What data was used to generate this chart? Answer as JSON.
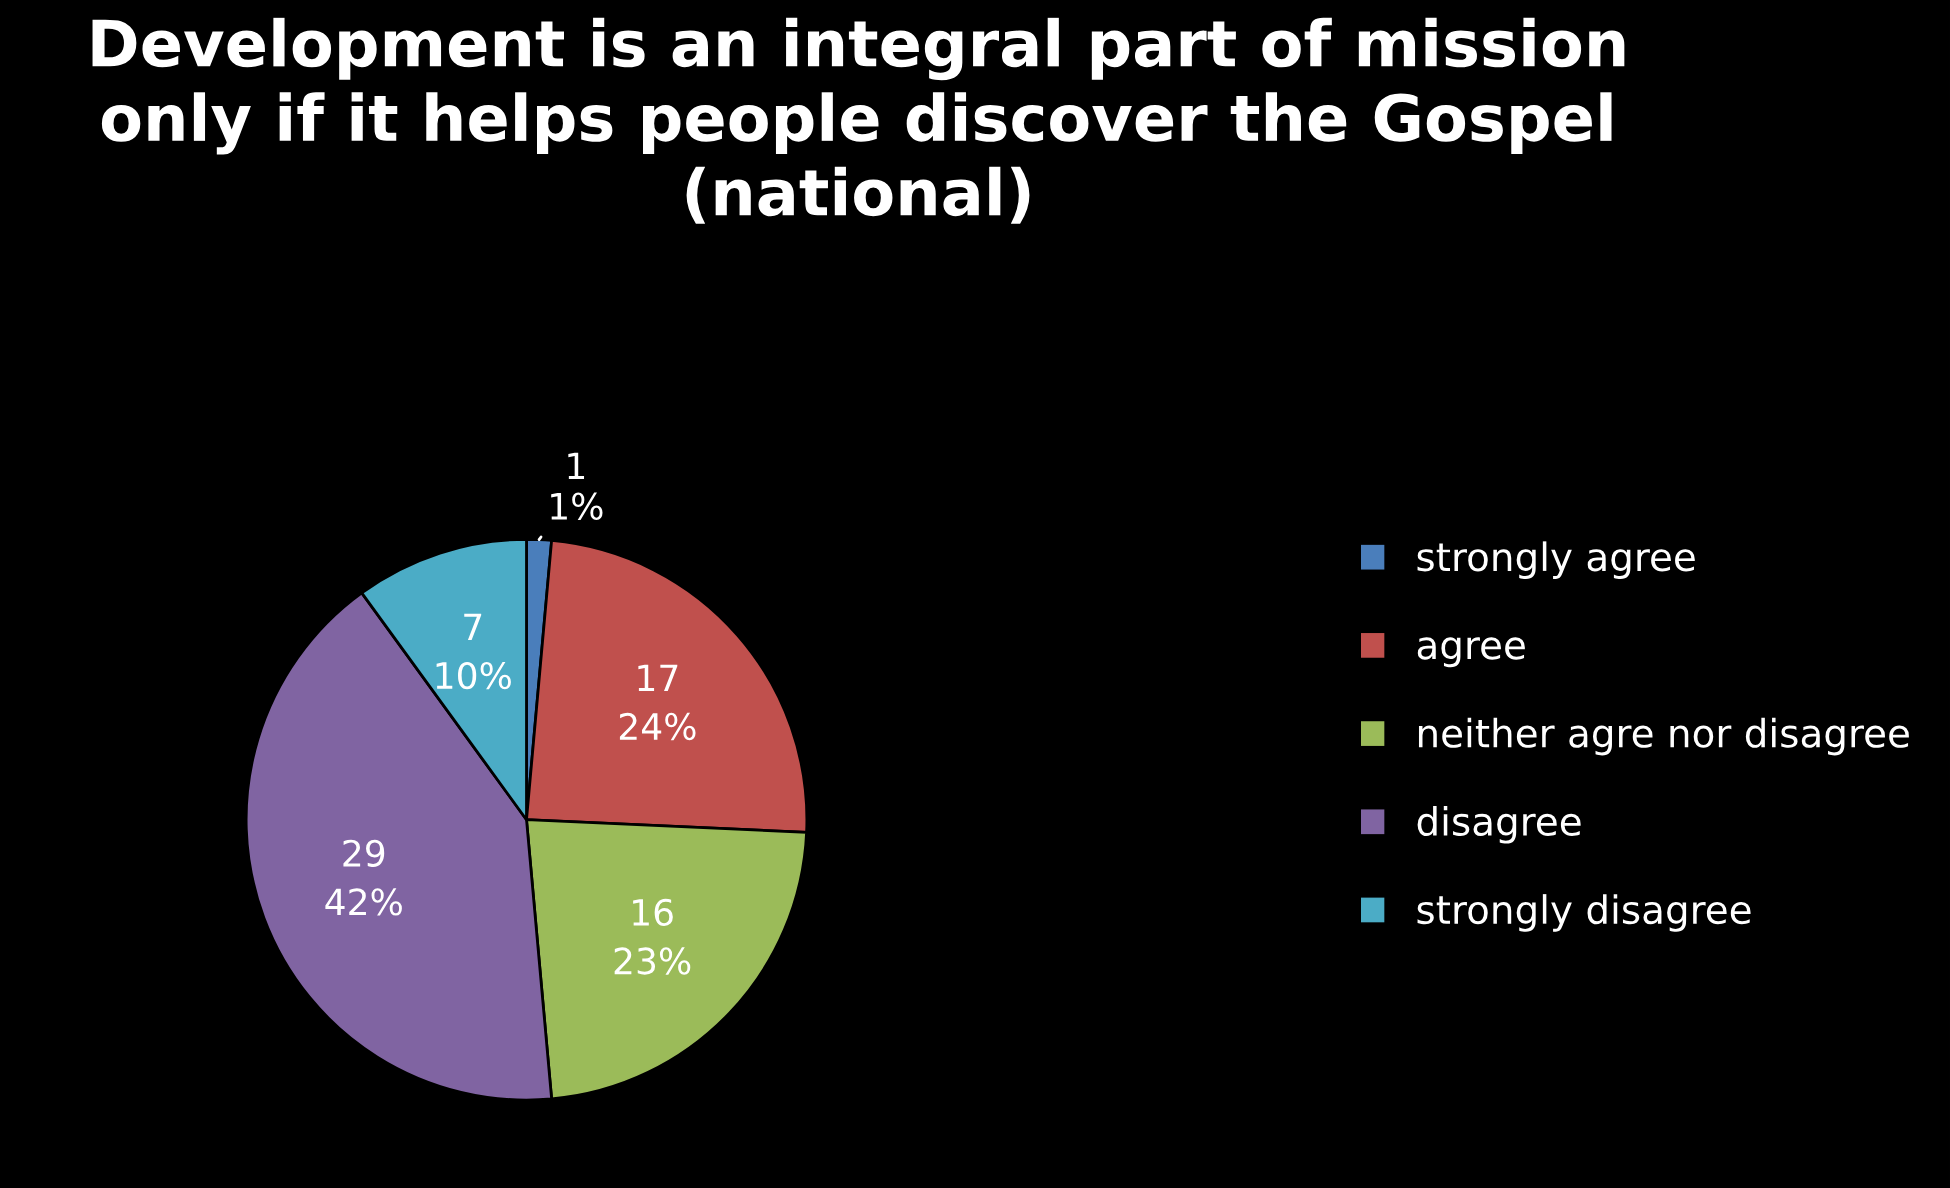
{
  "chart_data": {
    "type": "pie",
    "title": "Development is an integral part of mission\nonly if it helps people discover the Gospel\n(national)",
    "categories": [
      "strongly agree",
      "agree",
      "neither agre nor disagree",
      "disagree",
      "strongly disagree"
    ],
    "values": [
      1,
      17,
      16,
      29,
      7
    ],
    "value_labels": [
      "1\n1%",
      "17\n24%",
      "16\n23%",
      "29\n42%",
      "7\n10%"
    ],
    "colors": [
      "#4a7ebb",
      "#c0504d",
      "#9bbb59",
      "#8064a2",
      "#4bacc6"
    ],
    "legend": "right"
  }
}
